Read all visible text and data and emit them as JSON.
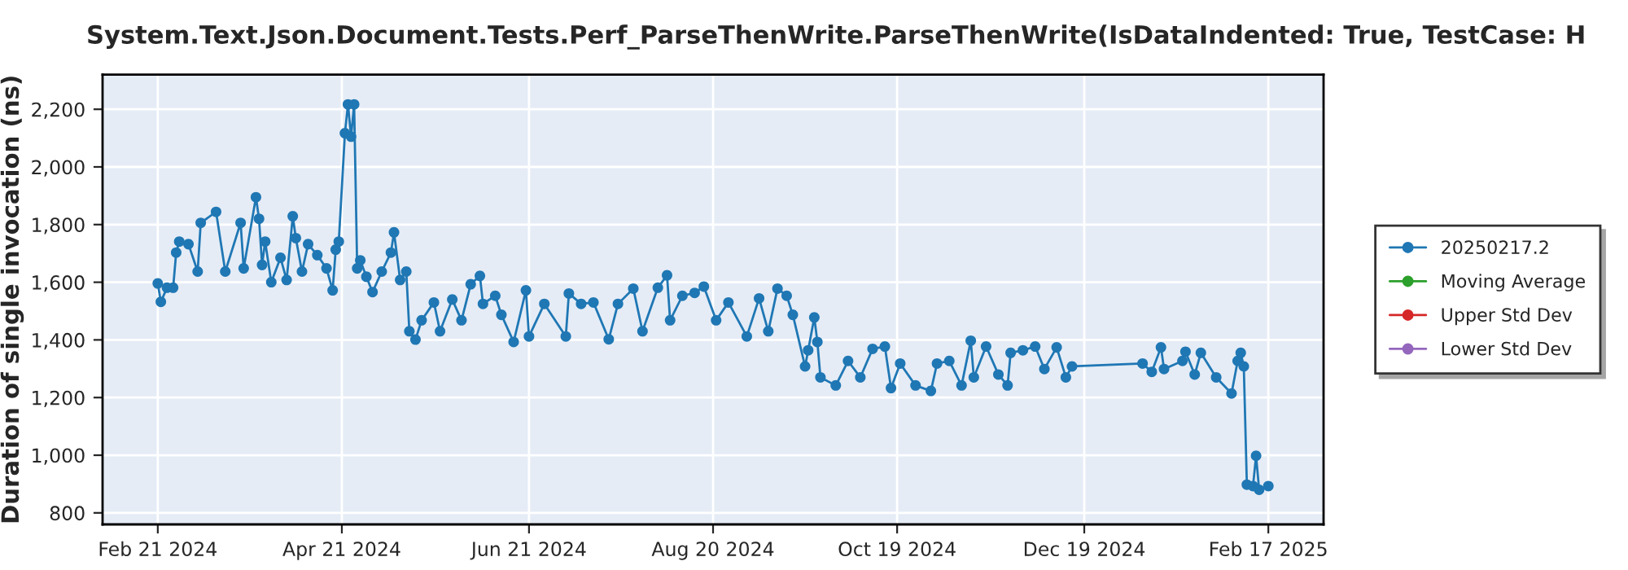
{
  "chart_data": {
    "type": "line",
    "title": "System.Text.Json.Document.Tests.Perf_ParseThenWrite.ParseThenWrite(IsDataIndented: True, TestCase: H",
    "ylabel": "Duration of single invocation (ns)",
    "x": [
      "2024-02-21",
      "2024-02-22",
      "2024-02-24",
      "2024-02-26",
      "2024-02-27",
      "2024-02-28",
      "2024-03-02",
      "2024-03-05",
      "2024-03-06",
      "2024-03-11",
      "2024-03-14",
      "2024-03-19",
      "2024-03-20",
      "2024-03-24",
      "2024-03-25",
      "2024-03-26",
      "2024-03-27",
      "2024-03-29",
      "2024-04-01",
      "2024-04-03",
      "2024-04-05",
      "2024-04-06",
      "2024-04-08",
      "2024-04-10",
      "2024-04-13",
      "2024-04-16",
      "2024-04-18",
      "2024-04-19",
      "2024-04-20",
      "2024-04-22",
      "2024-04-23",
      "2024-04-24",
      "2024-04-25",
      "2024-04-26",
      "2024-04-27",
      "2024-04-29",
      "2024-05-01",
      "2024-05-04",
      "2024-05-07",
      "2024-05-08",
      "2024-05-10",
      "2024-05-12",
      "2024-05-13",
      "2024-05-15",
      "2024-05-17",
      "2024-05-21",
      "2024-05-23",
      "2024-05-27",
      "2024-05-30",
      "2024-06-02",
      "2024-06-05",
      "2024-06-06",
      "2024-06-10",
      "2024-06-12",
      "2024-06-16",
      "2024-06-20",
      "2024-06-21",
      "2024-06-26",
      "2024-07-03",
      "2024-07-04",
      "2024-07-08",
      "2024-07-12",
      "2024-07-17",
      "2024-07-20",
      "2024-07-25",
      "2024-07-28",
      "2024-08-02",
      "2024-08-05",
      "2024-08-06",
      "2024-08-10",
      "2024-08-14",
      "2024-08-17",
      "2024-08-21",
      "2024-08-25",
      "2024-08-31",
      "2024-09-04",
      "2024-09-07",
      "2024-09-10",
      "2024-09-13",
      "2024-09-15",
      "2024-09-19",
      "2024-09-20",
      "2024-09-22",
      "2024-09-23",
      "2024-09-24",
      "2024-09-29",
      "2024-10-03",
      "2024-10-07",
      "2024-10-11",
      "2024-10-15",
      "2024-10-17",
      "2024-10-20",
      "2024-10-25",
      "2024-10-30",
      "2024-11-01",
      "2024-11-05",
      "2024-11-09",
      "2024-11-12",
      "2024-11-13",
      "2024-11-17",
      "2024-11-21",
      "2024-11-24",
      "2024-11-25",
      "2024-11-29",
      "2024-12-03",
      "2024-12-06",
      "2024-12-10",
      "2024-12-13",
      "2024-12-15",
      "2025-01-07",
      "2025-01-10",
      "2025-01-13",
      "2025-01-14",
      "2025-01-20",
      "2025-01-21",
      "2025-01-24",
      "2025-01-26",
      "2025-01-31",
      "2025-02-05",
      "2025-02-07",
      "2025-02-08",
      "2025-02-09",
      "2025-02-10",
      "2025-02-12",
      "2025-02-13",
      "2025-02-14",
      "2025-02-17"
    ],
    "series": [
      {
        "name": "20250217.2",
        "color": "#1f77b4",
        "values": [
          1596,
          1532,
          1581,
          1581,
          1703,
          1741,
          1732,
          1637,
          1806,
          1844,
          1637,
          1806,
          1648,
          1895,
          1820,
          1660,
          1741,
          1600,
          1685,
          1608,
          1829,
          1753,
          1637,
          1732,
          1694,
          1648,
          1572,
          1713,
          1741,
          2117,
          2217,
          2105,
          2217,
          1648,
          1676,
          1619,
          1566,
          1637,
          1703,
          1773,
          1608,
          1637,
          1430,
          1401,
          1468,
          1530,
          1430,
          1540,
          1468,
          1593,
          1622,
          1525,
          1553,
          1487,
          1393,
          1572,
          1412,
          1525,
          1412,
          1561,
          1525,
          1530,
          1402,
          1525,
          1578,
          1430,
          1581,
          1624,
          1468,
          1553,
          1563,
          1585,
          1468,
          1530,
          1412,
          1544,
          1430,
          1578,
          1553,
          1487,
          1308,
          1364,
          1478,
          1393,
          1270,
          1242,
          1327,
          1270,
          1369,
          1377,
          1233,
          1318,
          1242,
          1223,
          1318,
          1327,
          1242,
          1397,
          1270,
          1377,
          1280,
          1242,
          1355,
          1364,
          1377,
          1299,
          1374,
          1270,
          1308,
          1318,
          1289,
          1374,
          1299,
          1327,
          1359,
          1280,
          1355,
          1270,
          1214,
          1327,
          1355,
          1308,
          898,
          893,
          998,
          880,
          893
        ]
      },
      {
        "name": "Moving Average",
        "color": "#2ca02c",
        "values": [
          null,
          null,
          null,
          null,
          null,
          null,
          null,
          null,
          null,
          null,
          null,
          null,
          null,
          null,
          null,
          null,
          null,
          null,
          null,
          null,
          null,
          null,
          null,
          null,
          null,
          null,
          null,
          null,
          null,
          null,
          null,
          null,
          null,
          null,
          null,
          null,
          null,
          null,
          null,
          null,
          null,
          null,
          null,
          null,
          null,
          null,
          null,
          null,
          null,
          null,
          null,
          null,
          null,
          null,
          null,
          null,
          null,
          null,
          null,
          null,
          null,
          null,
          null,
          null,
          null,
          null,
          null,
          null,
          null,
          null,
          null,
          null,
          null,
          null,
          null,
          null,
          null,
          null,
          null,
          null,
          null,
          null,
          null,
          null,
          null,
          null,
          null,
          null,
          null,
          null,
          null,
          null,
          null,
          null,
          null,
          null,
          null,
          null,
          null,
          null,
          null,
          null,
          null,
          null,
          null,
          null,
          null,
          null,
          null,
          null,
          null,
          null,
          null,
          null,
          null,
          null,
          null,
          null,
          null,
          null,
          null,
          null,
          null,
          null,
          null,
          null,
          null
        ]
      },
      {
        "name": "Upper Std Dev",
        "color": "#d62728",
        "values": [
          null,
          null,
          null,
          null,
          null,
          null,
          null,
          null,
          null,
          null,
          null,
          null,
          null,
          null,
          null,
          null,
          null,
          null,
          null,
          null,
          null,
          null,
          null,
          null,
          null,
          null,
          null,
          null,
          null,
          null,
          null,
          null,
          null,
          null,
          null,
          null,
          null,
          null,
          null,
          null,
          null,
          null,
          null,
          null,
          null,
          null,
          null,
          null,
          null,
          null,
          null,
          null,
          null,
          null,
          null,
          null,
          null,
          null,
          null,
          null,
          null,
          null,
          null,
          null,
          null,
          null,
          null,
          null,
          null,
          null,
          null,
          null,
          null,
          null,
          null,
          null,
          null,
          null,
          null,
          null,
          null,
          null,
          null,
          null,
          null,
          null,
          null,
          null,
          null,
          null,
          null,
          null,
          null,
          null,
          null,
          null,
          null,
          null,
          null,
          null,
          null,
          null,
          null,
          null,
          null,
          null,
          null,
          null,
          null,
          null,
          null,
          null,
          null,
          null,
          null,
          null,
          null,
          null,
          null,
          null,
          null,
          null,
          null,
          null,
          null,
          null,
          null
        ]
      },
      {
        "name": "Lower Std Dev",
        "color": "#9467bd",
        "values": [
          null,
          null,
          null,
          null,
          null,
          null,
          null,
          null,
          null,
          null,
          null,
          null,
          null,
          null,
          null,
          null,
          null,
          null,
          null,
          null,
          null,
          null,
          null,
          null,
          null,
          null,
          null,
          null,
          null,
          null,
          null,
          null,
          null,
          null,
          null,
          null,
          null,
          null,
          null,
          null,
          null,
          null,
          null,
          null,
          null,
          null,
          null,
          null,
          null,
          null,
          null,
          null,
          null,
          null,
          null,
          null,
          null,
          null,
          null,
          null,
          null,
          null,
          null,
          null,
          null,
          null,
          null,
          null,
          null,
          null,
          null,
          null,
          null,
          null,
          null,
          null,
          null,
          null,
          null,
          null,
          null,
          null,
          null,
          null,
          null,
          null,
          null,
          null,
          null,
          null,
          null,
          null,
          null,
          null,
          null,
          null,
          null,
          null,
          null,
          null,
          null,
          null,
          null,
          null,
          null,
          null,
          null,
          null,
          null,
          null,
          null,
          null,
          null,
          null,
          null,
          null,
          null,
          null,
          null,
          null,
          null,
          null,
          null,
          null,
          null,
          null,
          null
        ]
      }
    ],
    "xlim": [
      "2024-02-03",
      "2025-03-07"
    ],
    "xticks": [
      {
        "value": "2024-02-21",
        "label": "Feb 21 2024"
      },
      {
        "value": "2024-04-21",
        "label": "Apr 21 2024"
      },
      {
        "value": "2024-06-21",
        "label": "Jun 21 2024"
      },
      {
        "value": "2024-08-20",
        "label": "Aug 20 2024"
      },
      {
        "value": "2024-10-19",
        "label": "Oct 19 2024"
      },
      {
        "value": "2024-12-19",
        "label": "Dec 19 2024"
      },
      {
        "value": "2025-02-17",
        "label": "Feb 17 2025"
      }
    ],
    "ylim": [
      760,
      2320
    ],
    "yticks": [
      {
        "value": 800,
        "label": "800"
      },
      {
        "value": 1000,
        "label": "1,000"
      },
      {
        "value": 1200,
        "label": "1,200"
      },
      {
        "value": 1400,
        "label": "1,400"
      },
      {
        "value": 1600,
        "label": "1,600"
      },
      {
        "value": 1800,
        "label": "1,800"
      },
      {
        "value": 2000,
        "label": "2,000"
      },
      {
        "value": 2200,
        "label": "2,200"
      }
    ],
    "grid": true,
    "legend": "right",
    "marker": "circle",
    "line_style": "solid"
  }
}
